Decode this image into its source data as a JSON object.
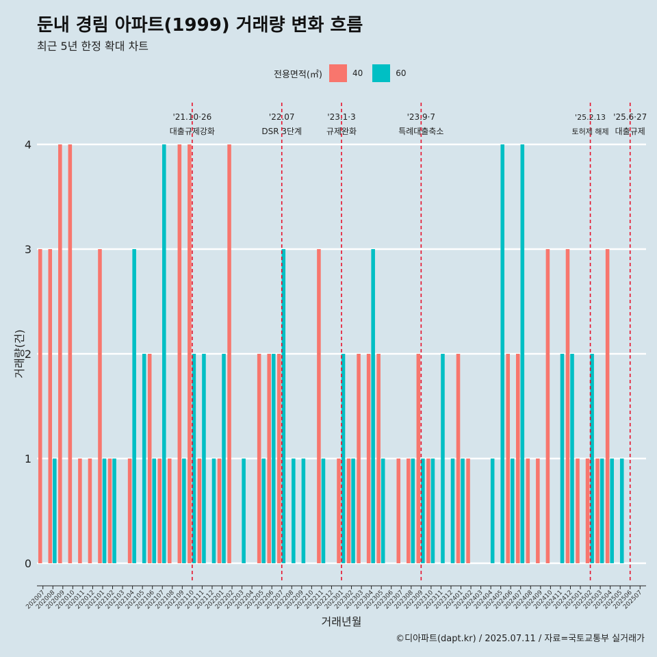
{
  "header": {
    "title": "둔내 경림 아파트(1999) 거래량 변화 흐름",
    "subtitle": "최근 5년 한정 확대 차트"
  },
  "legend": {
    "title": "전용면적(㎡)",
    "items": [
      {
        "label": "40",
        "color": "#f8766d"
      },
      {
        "label": "60",
        "color": "#00bfc4"
      }
    ]
  },
  "caption": "©디아파트(dapt.kr) / 2025.07.11 / 자료=국토교통부 실거래가",
  "chart_data": {
    "type": "bar",
    "title": "둔내 경림 아파트(1999) 거래량 변화 흐름",
    "subtitle": "최근 5년 한정 확대 차트",
    "xlabel": "거래년월",
    "ylabel": "거래량(건)",
    "ylim": [
      0,
      4
    ],
    "yticks": [
      0,
      1,
      2,
      3,
      4
    ],
    "grid": true,
    "legend_position": "top",
    "categories": [
      "202007",
      "202008",
      "202009",
      "202010",
      "202011",
      "202012",
      "202101",
      "202102",
      "202103",
      "202104",
      "202105",
      "202106",
      "202107",
      "202108",
      "202109",
      "202110",
      "202111",
      "202112",
      "202201",
      "202202",
      "202203",
      "202204",
      "202205",
      "202206",
      "202207",
      "202208",
      "202209",
      "202210",
      "202211",
      "202212",
      "202301",
      "202302",
      "202303",
      "202304",
      "202305",
      "202306",
      "202307",
      "202308",
      "202309",
      "202310",
      "202311",
      "202312",
      "202401",
      "202402",
      "202403",
      "202404",
      "202405",
      "202406",
      "202407",
      "202408",
      "202409",
      "202410",
      "202411",
      "202412",
      "202501",
      "202502",
      "202503",
      "202504",
      "202505",
      "202506",
      "202507"
    ],
    "series": [
      {
        "name": "40",
        "color": "#f8766d",
        "values": [
          3,
          3,
          4,
          4,
          1,
          1,
          3,
          1,
          0,
          1,
          0,
          2,
          1,
          1,
          4,
          4,
          1,
          0,
          1,
          4,
          0,
          0,
          2,
          2,
          2,
          0,
          0,
          0,
          3,
          0,
          1,
          1,
          2,
          2,
          2,
          0,
          1,
          1,
          2,
          1,
          0,
          0,
          2,
          1,
          0,
          0,
          0,
          2,
          2,
          1,
          1,
          3,
          0,
          3,
          1,
          1,
          1,
          3,
          0,
          0,
          0
        ]
      },
      {
        "name": "60",
        "color": "#00bfc4",
        "values": [
          0,
          1,
          0,
          0,
          0,
          0,
          1,
          1,
          0,
          3,
          2,
          1,
          4,
          0,
          1,
          2,
          2,
          1,
          2,
          0,
          1,
          0,
          1,
          2,
          3,
          1,
          1,
          0,
          1,
          0,
          2,
          1,
          0,
          3,
          1,
          0,
          0,
          1,
          1,
          1,
          2,
          1,
          1,
          0,
          0,
          1,
          4,
          1,
          4,
          0,
          0,
          0,
          2,
          2,
          0,
          2,
          1,
          1,
          1,
          0,
          0
        ]
      }
    ],
    "annotations": [
      {
        "index": 15,
        "date": "'21.10·26",
        "label": "대출규제강화"
      },
      {
        "index": 24,
        "date": "'22.07",
        "label": "DSR 3단계"
      },
      {
        "index": 30,
        "date": "'23.1·3",
        "label": "규제완화"
      },
      {
        "index": 38,
        "date": "'23.9·7",
        "label": "특례대출축소"
      },
      {
        "index": 55,
        "date": "'25.2.13",
        "label": "토허제 해제"
      },
      {
        "index": 59,
        "date": "'25.6·27",
        "label": "대출규제"
      }
    ],
    "annotation_line_color": "#e8102a"
  }
}
